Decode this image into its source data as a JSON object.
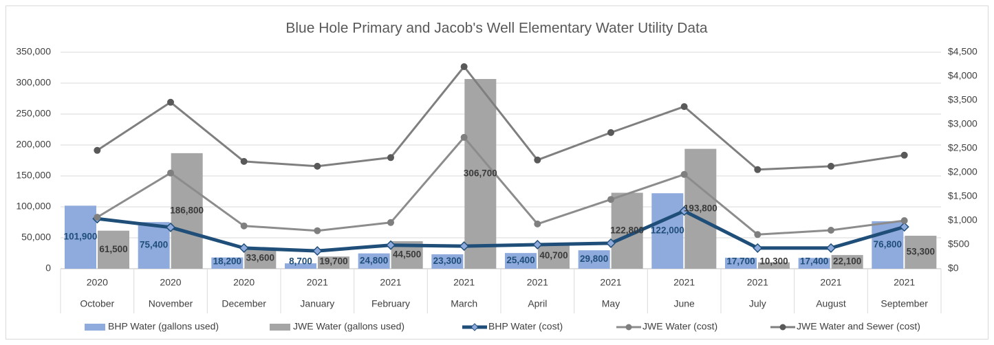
{
  "chart_data": {
    "type": "combo",
    "title": "Blue Hole Primary and Jacob's Well Elementary Water Utility Data",
    "categories": [
      "October",
      "November",
      "December",
      "January",
      "February",
      "March",
      "April",
      "May",
      "June",
      "July",
      "August",
      "September"
    ],
    "years": [
      "2020",
      "2020",
      "2020",
      "2021",
      "2021",
      "2021",
      "2021",
      "2021",
      "2021",
      "2021",
      "2021",
      "2021"
    ],
    "series": [
      {
        "name": "BHP Water (gallons used)",
        "type": "bar",
        "color": "#8faadc",
        "label_color": "#1f4e79",
        "values": [
          101900,
          75400,
          18200,
          8700,
          24800,
          23300,
          25400,
          29800,
          122000,
          17700,
          17400,
          76800
        ],
        "value_labels": [
          "101,900",
          "75,400",
          "18,200",
          "8,700",
          "24,800",
          "23,300",
          "25,400",
          "29,800",
          "122,000",
          "17,700",
          "17,400",
          "76,800"
        ]
      },
      {
        "name": "JWE Water (gallons used)",
        "type": "bar",
        "color": "#a5a5a5",
        "label_color": "#3a3a3a",
        "values": [
          61500,
          186800,
          33600,
          19700,
          44500,
          306700,
          40700,
          122800,
          193800,
          10300,
          22100,
          53300
        ],
        "value_labels": [
          "61,500",
          "186,800",
          "33,600",
          "19,700",
          "44,500",
          "306,700",
          "40,700",
          "122,800",
          "193,800",
          "10,300",
          "22,100",
          "53,300"
        ]
      },
      {
        "name": "BHP Water (cost)",
        "type": "line",
        "axis": "y2",
        "color": "#1f4e79",
        "marker": "diamond",
        "marker_color": "#8faadc",
        "values": [
          1040,
          860,
          430,
          370,
          490,
          470,
          500,
          530,
          1200,
          430,
          430,
          870
        ]
      },
      {
        "name": "JWE Water (cost)",
        "type": "line",
        "axis": "y2",
        "color": "#8c8c8c",
        "marker": "circle",
        "marker_color": "#7f7f7f",
        "values": [
          1070,
          1990,
          890,
          790,
          960,
          2730,
          930,
          1440,
          1960,
          710,
          800,
          1000
        ]
      },
      {
        "name": "JWE Water and Sewer (cost)",
        "type": "line",
        "axis": "y2",
        "color": "#7f7f7f",
        "marker": "circle",
        "marker_color": "#595959",
        "values": [
          2460,
          3460,
          2230,
          2130,
          2310,
          4200,
          2260,
          2830,
          3370,
          2060,
          2130,
          2360
        ]
      }
    ],
    "ylim": [
      0,
      350000
    ],
    "yticks": [
      0,
      {
        "value": 50000,
        "label": "50,000"
      },
      {
        "value": 100000,
        "label": "100,000"
      },
      {
        "value": 150000,
        "label": "150,000"
      },
      {
        "value": 200000,
        "label": "200,000"
      },
      {
        "value": 250000,
        "label": "250,000"
      },
      {
        "value": 300000,
        "label": "300,000"
      },
      {
        "value": 350000,
        "label": "350,000"
      }
    ],
    "y2lim": [
      0,
      4500
    ],
    "y2ticks": [
      {
        "value": 0,
        "label": "$0"
      },
      {
        "value": 500,
        "label": "$500"
      },
      {
        "value": 1000,
        "label": "$1,000"
      },
      {
        "value": 1500,
        "label": "$1,500"
      },
      {
        "value": 2000,
        "label": "$2,000"
      },
      {
        "value": 2500,
        "label": "$2,500"
      },
      {
        "value": 3000,
        "label": "$3,000"
      },
      {
        "value": 3500,
        "label": "$3,500"
      },
      {
        "value": 4000,
        "label": "$4,000"
      },
      {
        "value": 4500,
        "label": "$4,500"
      }
    ],
    "grid": true,
    "legend": "bottom"
  }
}
